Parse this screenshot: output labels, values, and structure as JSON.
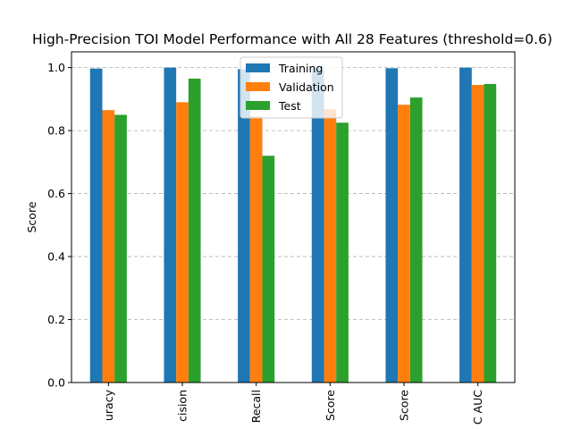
{
  "chart_data": {
    "type": "bar",
    "title": "High-Precision TOI Model Performance with All 28 Features (threshold=0.6)",
    "xlabel": "",
    "ylabel": "Score",
    "categories": [
      "uracy",
      "cision",
      "Recall",
      "Score",
      "Score",
      "C AUC"
    ],
    "series": [
      {
        "name": "Training",
        "color": "#1f77b4",
        "values": [
          0.997,
          1.0,
          0.995,
          0.998,
          0.998,
          1.0
        ]
      },
      {
        "name": "Validation",
        "color": "#ff7f0e",
        "values": [
          0.865,
          0.89,
          0.845,
          0.868,
          0.882,
          0.945
        ]
      },
      {
        "name": "Test",
        "color": "#2ca02c",
        "values": [
          0.85,
          0.965,
          0.72,
          0.825,
          0.905,
          0.948
        ]
      }
    ],
    "ylim": [
      0,
      1.05
    ],
    "yticks": [
      "0.0",
      "0.2",
      "0.4",
      "0.6",
      "0.8",
      "1.0"
    ],
    "ytick_values": [
      0,
      0.2,
      0.4,
      0.6,
      0.8,
      1.0
    ],
    "grid": "y-dashed",
    "legend_position": "top-center"
  }
}
